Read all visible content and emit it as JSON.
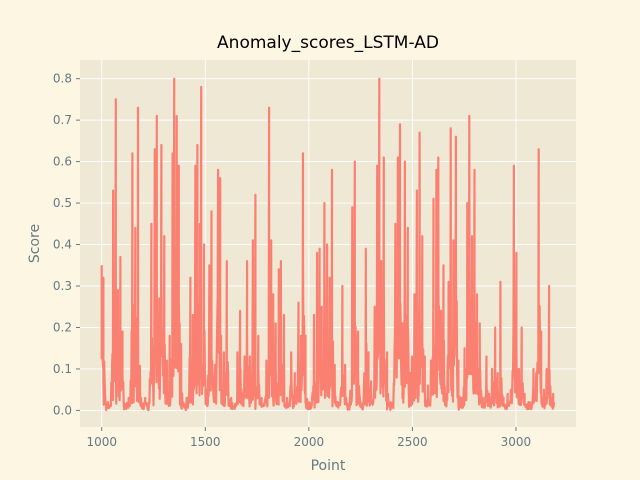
{
  "chart_data": {
    "type": "line",
    "title": "Anomaly_scores_LSTM-AD",
    "xlabel": "Point",
    "ylabel": "Score",
    "xlim": [
      895,
      3290
    ],
    "ylim": [
      -0.04,
      0.845
    ],
    "xticks": [
      1000,
      1500,
      2000,
      2500,
      3000
    ],
    "yticks": [
      0.0,
      0.1,
      0.2,
      0.3,
      0.4,
      0.5,
      0.6,
      0.7,
      0.8
    ],
    "grid": true,
    "legend": "none",
    "series": [
      {
        "color": "#fa8072",
        "x_start": 1000,
        "x_end": 3185,
        "baseline_max": 0.02,
        "peaks": [
          [
            1000,
            0.35
          ],
          [
            1008,
            0.32
          ],
          [
            1030,
            0.02
          ],
          [
            1055,
            0.53
          ],
          [
            1068,
            0.75
          ],
          [
            1078,
            0.29
          ],
          [
            1090,
            0.37
          ],
          [
            1100,
            0.19
          ],
          [
            1130,
            0.03
          ],
          [
            1148,
            0.62
          ],
          [
            1162,
            0.44
          ],
          [
            1175,
            0.73
          ],
          [
            1190,
            0.03
          ],
          [
            1210,
            0.03
          ],
          [
            1240,
            0.45
          ],
          [
            1256,
            0.63
          ],
          [
            1266,
            0.71
          ],
          [
            1278,
            0.27
          ],
          [
            1288,
            0.64
          ],
          [
            1302,
            0.42
          ],
          [
            1315,
            0.12
          ],
          [
            1328,
            0.18
          ],
          [
            1342,
            0.62
          ],
          [
            1350,
            0.8
          ],
          [
            1362,
            0.71
          ],
          [
            1372,
            0.59
          ],
          [
            1383,
            0.16
          ],
          [
            1410,
            0.03
          ],
          [
            1428,
            0.32
          ],
          [
            1440,
            0.23
          ],
          [
            1452,
            0.59
          ],
          [
            1462,
            0.64
          ],
          [
            1474,
            0.45
          ],
          [
            1480,
            0.78
          ],
          [
            1494,
            0.4
          ],
          [
            1505,
            0.05
          ],
          [
            1520,
            0.35
          ],
          [
            1530,
            0.48
          ],
          [
            1548,
            0.11
          ],
          [
            1562,
            0.58
          ],
          [
            1572,
            0.56
          ],
          [
            1590,
            0.14
          ],
          [
            1604,
            0.36
          ],
          [
            1625,
            0.03
          ],
          [
            1655,
            0.14
          ],
          [
            1668,
            0.24
          ],
          [
            1680,
            0.04
          ],
          [
            1690,
            0.13
          ],
          [
            1702,
            0.36
          ],
          [
            1715,
            0.13
          ],
          [
            1730,
            0.41
          ],
          [
            1742,
            0.52
          ],
          [
            1756,
            0.18
          ],
          [
            1772,
            0.03
          ],
          [
            1795,
            0.12
          ],
          [
            1808,
            0.73
          ],
          [
            1818,
            0.41
          ],
          [
            1828,
            0.28
          ],
          [
            1840,
            0.21
          ],
          [
            1855,
            0.34
          ],
          [
            1865,
            0.36
          ],
          [
            1880,
            0.23
          ],
          [
            1895,
            0.03
          ],
          [
            1915,
            0.14
          ],
          [
            1932,
            0.09
          ],
          [
            1950,
            0.26
          ],
          [
            1962,
            0.18
          ],
          [
            1972,
            0.62
          ],
          [
            1984,
            0.18
          ],
          [
            1998,
            0.01
          ],
          [
            2025,
            0.23
          ],
          [
            2040,
            0.38
          ],
          [
            2052,
            0.39
          ],
          [
            2062,
            0.25
          ],
          [
            2075,
            0.5
          ],
          [
            2088,
            0.4
          ],
          [
            2100,
            0.32
          ],
          [
            2112,
            0.58
          ],
          [
            2125,
            0.11
          ],
          [
            2140,
            0.02
          ],
          [
            2162,
            0.3
          ],
          [
            2175,
            0.11
          ],
          [
            2185,
            0.01
          ],
          [
            2210,
            0.49
          ],
          [
            2222,
            0.6
          ],
          [
            2238,
            0.19
          ],
          [
            2250,
            0.02
          ],
          [
            2275,
            0.39
          ],
          [
            2288,
            0.14
          ],
          [
            2300,
            0.07
          ],
          [
            2318,
            0.25
          ],
          [
            2330,
            0.59
          ],
          [
            2340,
            0.8
          ],
          [
            2350,
            0.36
          ],
          [
            2362,
            0.61
          ],
          [
            2378,
            0.14
          ],
          [
            2392,
            0.02
          ],
          [
            2418,
            0.45
          ],
          [
            2430,
            0.61
          ],
          [
            2440,
            0.69
          ],
          [
            2452,
            0.21
          ],
          [
            2464,
            0.6
          ],
          [
            2478,
            0.44
          ],
          [
            2488,
            0.09
          ],
          [
            2498,
            0.13
          ],
          [
            2510,
            0.28
          ],
          [
            2522,
            0.53
          ],
          [
            2535,
            0.67
          ],
          [
            2548,
            0.42
          ],
          [
            2560,
            0.13
          ],
          [
            2575,
            0.06
          ],
          [
            2590,
            0.12
          ],
          [
            2602,
            0.51
          ],
          [
            2616,
            0.58
          ],
          [
            2625,
            0.61
          ],
          [
            2638,
            0.24
          ],
          [
            2650,
            0.35
          ],
          [
            2662,
            0.04
          ],
          [
            2675,
            0.31
          ],
          [
            2685,
            0.68
          ],
          [
            2698,
            0.41
          ],
          [
            2710,
            0.66
          ],
          [
            2722,
            0.12
          ],
          [
            2738,
            0.03
          ],
          [
            2752,
            0.15
          ],
          [
            2765,
            0.5
          ],
          [
            2775,
            0.71
          ],
          [
            2788,
            0.42
          ],
          [
            2800,
            0.58
          ],
          [
            2812,
            0.28
          ],
          [
            2825,
            0.21
          ],
          [
            2840,
            0.03
          ],
          [
            2858,
            0.13
          ],
          [
            2870,
            0.04
          ],
          [
            2885,
            0.1
          ],
          [
            2900,
            0.2
          ],
          [
            2912,
            0.09
          ],
          [
            2925,
            0.31
          ],
          [
            2940,
            0.03
          ],
          [
            2960,
            0.04
          ],
          [
            2975,
            0.05
          ],
          [
            2990,
            0.59
          ],
          [
            3002,
            0.38
          ],
          [
            3015,
            0.1
          ],
          [
            3028,
            0.2
          ],
          [
            3042,
            0.04
          ],
          [
            3060,
            0.02
          ],
          [
            3085,
            0.1
          ],
          [
            3098,
            0.09
          ],
          [
            3110,
            0.63
          ],
          [
            3122,
            0.19
          ],
          [
            3135,
            0.05
          ],
          [
            3148,
            0.1
          ],
          [
            3160,
            0.3
          ],
          [
            3170,
            0.03
          ],
          [
            3180,
            0.04
          ],
          [
            3185,
            0.02
          ]
        ]
      }
    ]
  },
  "style": {
    "figure_bg": "#fdf6e3",
    "axes_bg": "#eee8d5",
    "grid_color": "#ffffff",
    "tick_color": "#657b83",
    "line_color": "#fa8072"
  }
}
